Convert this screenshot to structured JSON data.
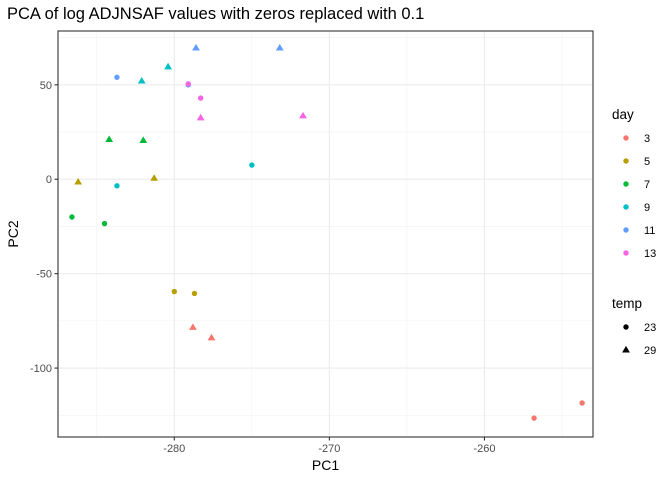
{
  "chart_data": {
    "type": "scatter",
    "title": "PCA of log ADJNSAF values with zeros replaced with 0.1",
    "xlabel": "PC1",
    "ylabel": "PC2",
    "xlim": [
      -287.5,
      -253.0
    ],
    "ylim": [
      -136.5,
      78.5
    ],
    "x_ticks": [
      -280,
      -270,
      -260
    ],
    "x_tick_labels": [
      "-280",
      "-270",
      "-260"
    ],
    "y_ticks": [
      -100,
      -50,
      0,
      50
    ],
    "y_tick_labels": [
      "-100",
      "-50",
      "0",
      "50"
    ],
    "grid": true,
    "legend_position": "right",
    "color_legend": {
      "title": "day",
      "entries": [
        {
          "label": "3",
          "color": "#F8766D"
        },
        {
          "label": "5",
          "color": "#B79F00"
        },
        {
          "label": "7",
          "color": "#00BA38"
        },
        {
          "label": "9",
          "color": "#00BFC4"
        },
        {
          "label": "11",
          "color": "#619CFF"
        },
        {
          "label": "13",
          "color": "#F564E3"
        }
      ]
    },
    "shape_legend": {
      "title": "temp",
      "entries": [
        {
          "label": "23",
          "shape": "circle"
        },
        {
          "label": "29",
          "shape": "triangle"
        }
      ]
    },
    "points": [
      {
        "x": -256.8,
        "y": -126.5,
        "day": "3",
        "temp": "23"
      },
      {
        "x": -253.7,
        "y": -118.5,
        "day": "3",
        "temp": "23"
      },
      {
        "x": -278.8,
        "y": -78.5,
        "day": "3",
        "temp": "29"
      },
      {
        "x": -277.6,
        "y": -84.0,
        "day": "3",
        "temp": "29"
      },
      {
        "x": -280.0,
        "y": -59.5,
        "day": "5",
        "temp": "23"
      },
      {
        "x": -278.7,
        "y": -60.5,
        "day": "5",
        "temp": "23"
      },
      {
        "x": -286.2,
        "y": -1.5,
        "day": "5",
        "temp": "29"
      },
      {
        "x": -281.3,
        "y": 0.5,
        "day": "5",
        "temp": "29"
      },
      {
        "x": -286.6,
        "y": -20.0,
        "day": "7",
        "temp": "23"
      },
      {
        "x": -284.5,
        "y": -23.5,
        "day": "7",
        "temp": "23"
      },
      {
        "x": -284.2,
        "y": 21.0,
        "day": "7",
        "temp": "29"
      },
      {
        "x": -282.0,
        "y": 20.5,
        "day": "7",
        "temp": "29"
      },
      {
        "x": -283.7,
        "y": -3.5,
        "day": "9",
        "temp": "23"
      },
      {
        "x": -275.0,
        "y": 7.5,
        "day": "9",
        "temp": "23"
      },
      {
        "x": -282.1,
        "y": 52.0,
        "day": "9",
        "temp": "29"
      },
      {
        "x": -280.4,
        "y": 59.5,
        "day": "9",
        "temp": "29"
      },
      {
        "x": -283.7,
        "y": 54.0,
        "day": "11",
        "temp": "23"
      },
      {
        "x": -279.1,
        "y": 50.0,
        "day": "11",
        "temp": "23"
      },
      {
        "x": -278.6,
        "y": 69.5,
        "day": "11",
        "temp": "29"
      },
      {
        "x": -273.2,
        "y": 69.5,
        "day": "11",
        "temp": "29"
      },
      {
        "x": -279.1,
        "y": 50.5,
        "day": "13",
        "temp": "23"
      },
      {
        "x": -278.3,
        "y": 43.0,
        "day": "13",
        "temp": "23"
      },
      {
        "x": -278.3,
        "y": 32.5,
        "day": "13",
        "temp": "29"
      },
      {
        "x": -271.7,
        "y": 33.5,
        "day": "13",
        "temp": "29"
      }
    ]
  }
}
